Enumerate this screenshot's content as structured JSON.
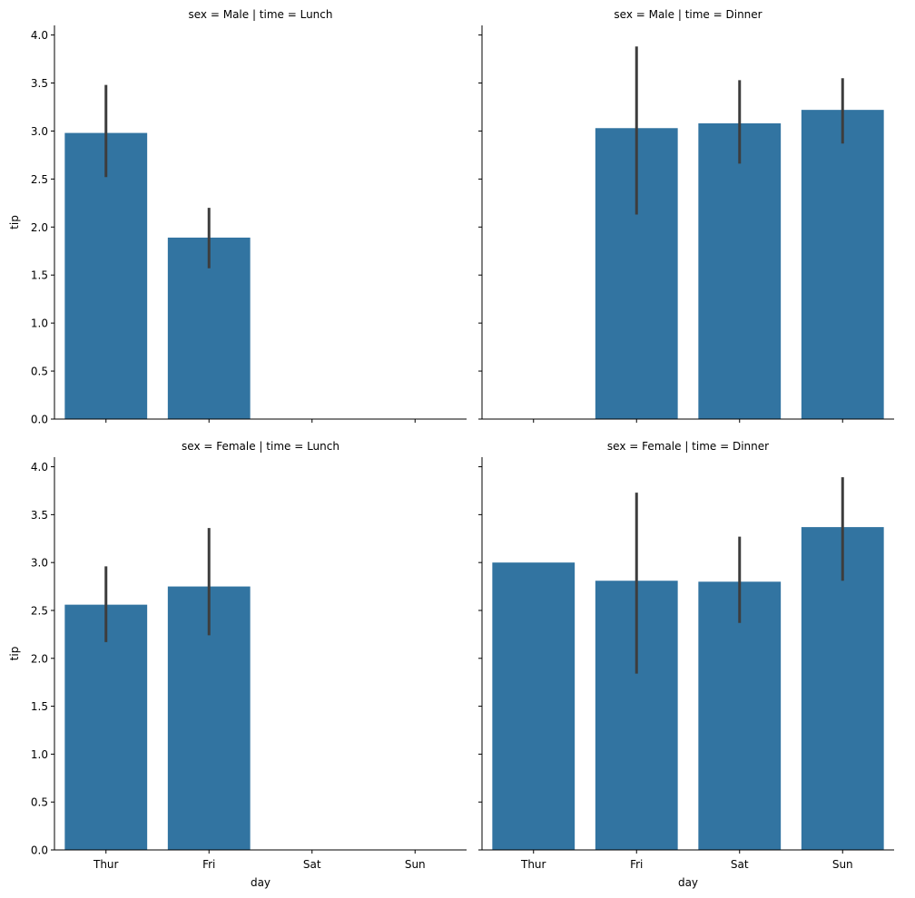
{
  "chart_data": [
    {
      "type": "bar",
      "title": "sex = Male | time = Lunch",
      "xlabel": "",
      "ylabel": "tip",
      "categories": [
        "Thur",
        "Fri",
        "Sat",
        "Sun"
      ],
      "values": [
        2.98,
        1.89,
        null,
        null
      ],
      "error_bars": [
        [
          2.52,
          3.48
        ],
        [
          1.57,
          2.2
        ],
        null,
        null
      ],
      "ylim": [
        0,
        4.1
      ],
      "yticks": [
        "0.0",
        "0.5",
        "1.0",
        "1.5",
        "2.0",
        "2.5",
        "3.0",
        "3.5",
        "4.0"
      ],
      "show_xticklabels": false,
      "show_yticklabels": true,
      "color": "#3274a1"
    },
    {
      "type": "bar",
      "title": "sex = Male | time = Dinner",
      "xlabel": "",
      "ylabel": "",
      "categories": [
        "Thur",
        "Fri",
        "Sat",
        "Sun"
      ],
      "values": [
        null,
        3.03,
        3.08,
        3.22
      ],
      "error_bars": [
        null,
        [
          2.13,
          3.88
        ],
        [
          2.66,
          3.53
        ],
        [
          2.87,
          3.55
        ]
      ],
      "ylim": [
        0,
        4.1
      ],
      "yticks": [],
      "show_xticklabels": false,
      "show_yticklabels": false,
      "color": "#3274a1"
    },
    {
      "type": "bar",
      "title": "sex = Female | time = Lunch",
      "xlabel": "day",
      "ylabel": "tip",
      "categories": [
        "Thur",
        "Fri",
        "Sat",
        "Sun"
      ],
      "values": [
        2.56,
        2.75,
        null,
        null
      ],
      "error_bars": [
        [
          2.17,
          2.96
        ],
        [
          2.24,
          3.36
        ],
        null,
        null
      ],
      "ylim": [
        0,
        4.1
      ],
      "yticks": [
        "0.0",
        "0.5",
        "1.0",
        "1.5",
        "2.0",
        "2.5",
        "3.0",
        "3.5",
        "4.0"
      ],
      "show_xticklabels": true,
      "show_yticklabels": true,
      "color": "#3274a1"
    },
    {
      "type": "bar",
      "title": "sex = Female | time = Dinner",
      "xlabel": "day",
      "ylabel": "",
      "categories": [
        "Thur",
        "Fri",
        "Sat",
        "Sun"
      ],
      "values": [
        3.0,
        2.81,
        2.8,
        3.37
      ],
      "error_bars": [
        null,
        [
          1.84,
          3.73
        ],
        [
          2.37,
          3.27
        ],
        [
          2.81,
          3.89
        ]
      ],
      "ylim": [
        0,
        4.1
      ],
      "yticks": [],
      "show_xticklabels": true,
      "show_yticklabels": false,
      "color": "#3274a1"
    }
  ]
}
